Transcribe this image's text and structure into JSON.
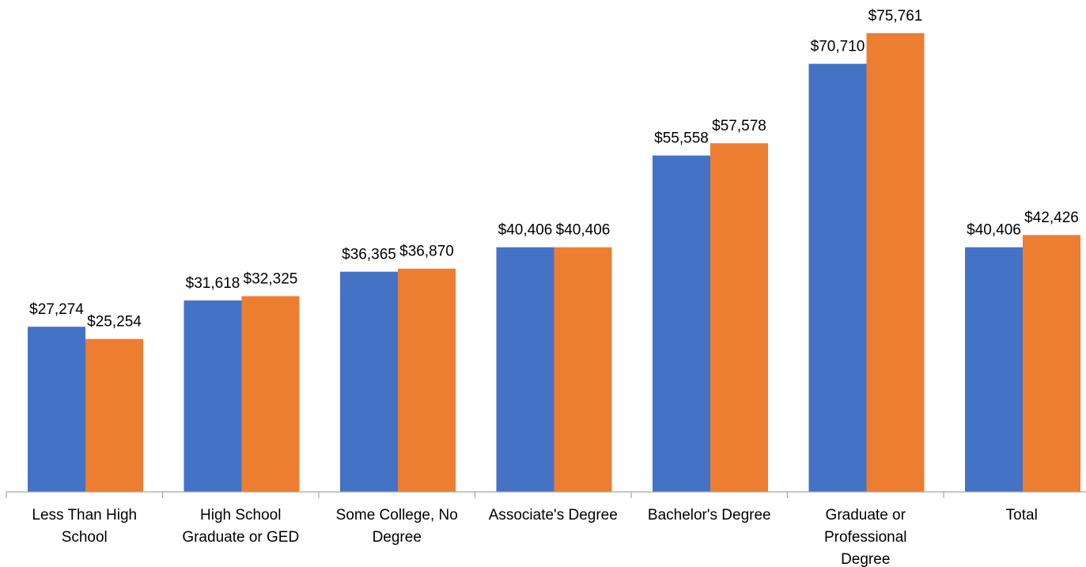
{
  "chart_data": {
    "type": "bar",
    "title": "",
    "xlabel": "",
    "ylabel": "",
    "categories": [
      [
        "Less Than High",
        "School"
      ],
      [
        "High  School",
        "Graduate or GED"
      ],
      [
        "Some College, No",
        "Degree"
      ],
      [
        "Associate's Degree"
      ],
      [
        "Bachelor's Degree"
      ],
      [
        "Graduate or",
        "Professional",
        "Degree"
      ],
      [
        "Total"
      ]
    ],
    "series": [
      {
        "color": "#4472c4",
        "values": [
          27274,
          31618,
          36365,
          40406,
          55558,
          70710,
          40406
        ],
        "labels": [
          "$27,274",
          "$31,618",
          "$36,365",
          "$40,406",
          "$55,558",
          "$70,710",
          "$40,406"
        ]
      },
      {
        "color": "#ed7d31",
        "values": [
          25254,
          32325,
          36870,
          40406,
          57578,
          75761,
          42426
        ],
        "labels": [
          "$25,254",
          "$32,325",
          "$36,870",
          "$40,406",
          "$57,578",
          "$75,761",
          "$42,426"
        ]
      }
    ],
    "ylim": [
      0,
      75761
    ],
    "grid": false,
    "legend": "none",
    "yaxis_visible": false
  }
}
